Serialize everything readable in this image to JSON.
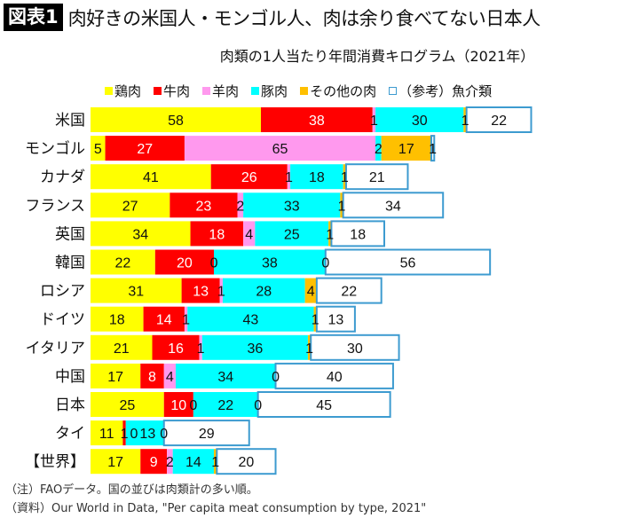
{
  "header": {
    "badge": "図表1",
    "title": "肉好きの米国人・モンゴル人、肉は余り食べてない日本人"
  },
  "footnotes": [
    "（注）FAOデータ。国の並びは肉類計の多い順。",
    "（資料）Our World in Data, \"Per capita meat consumption by type, 2021\""
  ],
  "chart_data": {
    "type": "bar",
    "orientation": "horizontal",
    "stacked": true,
    "title": "肉類の1人当たり年間消費キログラム（2021年）",
    "legend_placement": "top",
    "categories": [
      "米国",
      "モンゴル",
      "カナダ",
      "フランス",
      "英国",
      "韓国",
      "ロシア",
      "ドイツ",
      "イタリア",
      "中国",
      "日本",
      "タイ",
      "【世界】"
    ],
    "series": [
      {
        "name": "鶏肉",
        "color": "#ffff00",
        "values": [
          58,
          5,
          41,
          27,
          34,
          22,
          31,
          18,
          21,
          17,
          25,
          11,
          17
        ]
      },
      {
        "name": "牛肉",
        "color": "#ff0000",
        "values": [
          38,
          27,
          26,
          23,
          18,
          20,
          13,
          14,
          16,
          8,
          10,
          1,
          9
        ]
      },
      {
        "name": "羊肉",
        "color": "#ff99ee",
        "values": [
          1,
          65,
          1,
          2,
          4,
          0,
          1,
          1,
          1,
          4,
          0,
          0,
          2
        ]
      },
      {
        "name": "豚肉",
        "color": "#00ffff",
        "values": [
          30,
          2,
          18,
          33,
          25,
          38,
          28,
          43,
          36,
          34,
          22,
          13,
          14
        ]
      },
      {
        "name": "その他の肉",
        "color": "#ffc000",
        "values": [
          1,
          17,
          1,
          1,
          1,
          0,
          4,
          1,
          1,
          0,
          0,
          0,
          1
        ]
      },
      {
        "name": "（参考）魚介類",
        "color": "#ffffff",
        "stroke": "#3d9bd0",
        "values": [
          22,
          1,
          21,
          34,
          18,
          56,
          22,
          13,
          30,
          40,
          45,
          29,
          20
        ]
      }
    ]
  }
}
